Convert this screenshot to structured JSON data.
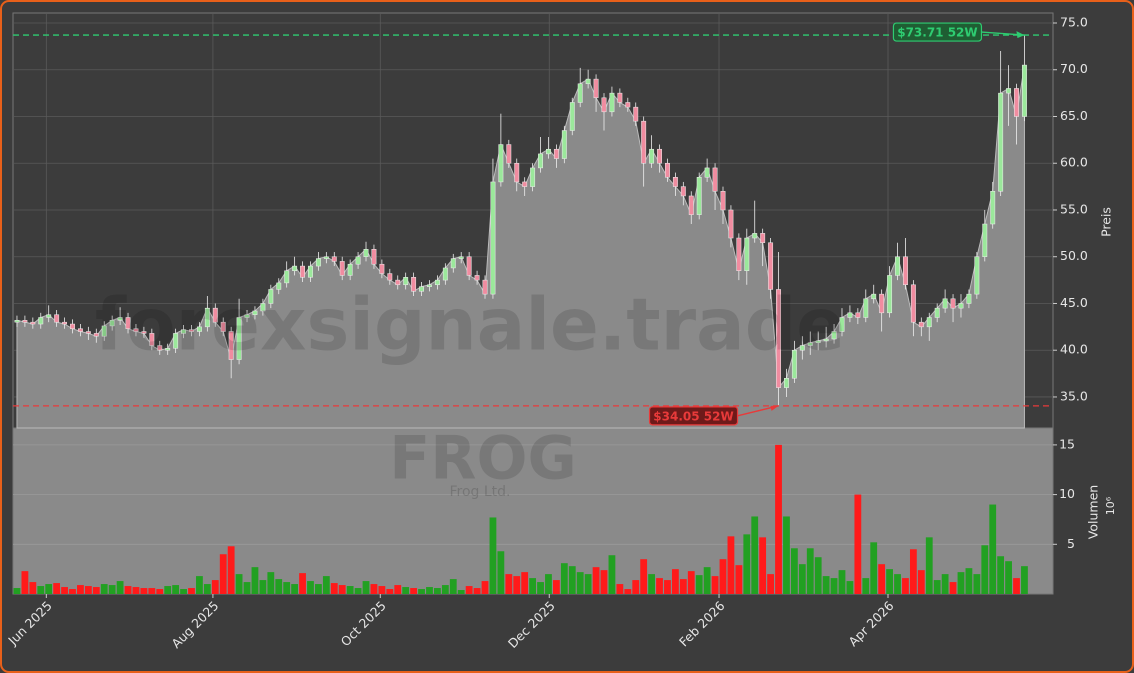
{
  "chart_data": {
    "type": "candlestick",
    "watermark": "forexsignale.trade",
    "symbol": "FROG",
    "company": "Frog Ltd.",
    "ylabel": "Preis",
    "y2label": "Volumen",
    "y2unit": "10⁶",
    "open": [
      43.0,
      43.2,
      43.0,
      42.8,
      43.5,
      43.8,
      43.0,
      42.8,
      42.3,
      42.0,
      41.8,
      41.5,
      42.6,
      43.2,
      43.5,
      42.3,
      42.0,
      41.8,
      40.5,
      40.0,
      40.2,
      41.8,
      42.2,
      42.0,
      42.5,
      44.5,
      43.0,
      42.0,
      39.0,
      43.5,
      43.8,
      44.2,
      45.0,
      46.5,
      47.2,
      48.5,
      49.0,
      47.8,
      49.0,
      49.8,
      50.0,
      49.5,
      48.0,
      49.2,
      50.0,
      50.8,
      49.2,
      48.2,
      47.5,
      47.0,
      47.8,
      46.3,
      46.8,
      47.0,
      47.5,
      48.8,
      49.8,
      50.0,
      48.0,
      47.5,
      46.0,
      58.0,
      62.0,
      60.0,
      58.0,
      57.5,
      59.5,
      61.0,
      61.5,
      60.5,
      63.5,
      66.5,
      68.5,
      69.0,
      67.0,
      65.5,
      67.5,
      66.5,
      66.0,
      64.5,
      60.0,
      61.5,
      60.0,
      58.5,
      57.5,
      56.5,
      54.5,
      58.5,
      59.5,
      57.0,
      55.0,
      52.0,
      48.5,
      52.0,
      52.5,
      51.5,
      46.5,
      36.0,
      37.0,
      40.0,
      40.5,
      40.8,
      41.0,
      41.2,
      42.0,
      43.5,
      44.0,
      43.5,
      45.5,
      46.0,
      44.0,
      48.0,
      50.0,
      47.0,
      43.0,
      42.5,
      43.5,
      44.5,
      45.5,
      44.5,
      45.0,
      46.0,
      50.0,
      53.5,
      57.0,
      67.5,
      68.0,
      65.0
    ],
    "high": [
      43.7,
      43.7,
      43.5,
      44.0,
      44.8,
      44.3,
      43.5,
      43.3,
      42.8,
      42.5,
      42.3,
      43.1,
      43.7,
      44.6,
      44.0,
      42.8,
      42.5,
      42.3,
      41.0,
      40.7,
      42.3,
      42.7,
      42.7,
      43.0,
      45.8,
      45.0,
      43.5,
      42.5,
      45.5,
      44.3,
      44.7,
      45.5,
      47.0,
      47.7,
      49.5,
      50.0,
      49.5,
      49.5,
      50.5,
      50.5,
      50.5,
      50.0,
      49.7,
      50.5,
      51.6,
      51.3,
      49.7,
      48.7,
      48.0,
      48.3,
      48.3,
      47.3,
      47.5,
      48.0,
      49.3,
      50.3,
      50.5,
      50.5,
      48.5,
      48.0,
      60.5,
      65.3,
      62.5,
      60.5,
      58.5,
      60.0,
      62.8,
      62.8,
      62.0,
      64.0,
      67.0,
      70.2,
      70.0,
      69.5,
      67.5,
      68.2,
      68.0,
      67.0,
      66.5,
      65.0,
      63.0,
      62.0,
      60.5,
      59.0,
      58.0,
      57.0,
      59.0,
      60.5,
      60.0,
      57.5,
      55.5,
      52.5,
      53.0,
      56.0,
      53.0,
      52.0,
      50.5,
      38.0,
      41.0,
      41.5,
      42.0,
      42.0,
      42.5,
      42.8,
      44.5,
      44.8,
      44.5,
      46.5,
      47.0,
      46.5,
      49.0,
      51.5,
      52.0,
      47.5,
      43.5,
      44.0,
      45.0,
      46.5,
      46.0,
      46.0,
      46.5,
      50.5,
      55.0,
      58.0,
      72.0,
      70.5,
      68.5,
      73.71
    ],
    "low": [
      42.5,
      42.5,
      42.3,
      42.3,
      43.0,
      42.5,
      42.3,
      41.8,
      41.5,
      41.1,
      40.8,
      41.0,
      42.1,
      42.7,
      41.8,
      41.5,
      41.3,
      40.0,
      39.5,
      39.5,
      39.7,
      41.3,
      41.5,
      41.5,
      42.0,
      42.5,
      41.5,
      37.0,
      38.5,
      43.0,
      43.3,
      43.7,
      44.5,
      46.0,
      46.7,
      48.0,
      47.3,
      47.3,
      48.5,
      49.3,
      49.0,
      47.5,
      47.5,
      48.7,
      49.5,
      48.7,
      47.7,
      47.0,
      46.5,
      46.5,
      45.8,
      45.8,
      46.3,
      46.5,
      47.0,
      48.3,
      49.3,
      47.5,
      47.0,
      45.5,
      45.5,
      57.5,
      59.5,
      57.0,
      56.5,
      57.0,
      59.0,
      60.5,
      59.5,
      60.0,
      63.0,
      66.0,
      68.0,
      65.5,
      63.5,
      65.0,
      66.0,
      65.5,
      64.0,
      57.5,
      59.5,
      59.0,
      58.0,
      56.5,
      55.5,
      53.5,
      54.0,
      58.0,
      55.0,
      53.5,
      51.0,
      47.5,
      47.0,
      51.5,
      49.0,
      45.5,
      34.05,
      35.0,
      36.5,
      39.0,
      39.5,
      40.0,
      40.3,
      40.7,
      41.5,
      43.0,
      42.8,
      43.0,
      45.0,
      42.0,
      43.5,
      47.5,
      46.5,
      41.5,
      41.5,
      41.0,
      43.0,
      44.0,
      43.0,
      43.5,
      44.5,
      45.5,
      49.5,
      53.0,
      56.5,
      64.0,
      62.0,
      64.5
    ],
    "close": [
      43.2,
      43.0,
      42.8,
      43.5,
      43.8,
      43.0,
      42.8,
      42.3,
      42.0,
      41.8,
      41.5,
      42.6,
      43.2,
      43.5,
      42.3,
      42.0,
      41.8,
      40.5,
      40.0,
      40.2,
      41.8,
      42.2,
      42.0,
      42.5,
      44.5,
      43.0,
      42.0,
      39.0,
      43.5,
      43.8,
      44.2,
      45.0,
      46.5,
      47.2,
      48.5,
      49.0,
      47.8,
      49.0,
      49.8,
      50.0,
      49.5,
      48.0,
      49.2,
      50.0,
      50.8,
      49.2,
      48.2,
      47.5,
      47.0,
      47.8,
      46.3,
      46.8,
      47.0,
      47.5,
      48.8,
      49.8,
      50.0,
      48.0,
      47.5,
      46.0,
      58.0,
      62.0,
      60.0,
      58.0,
      57.5,
      59.5,
      61.0,
      61.5,
      60.5,
      63.5,
      66.5,
      68.5,
      69.0,
      67.0,
      65.5,
      67.5,
      66.5,
      66.0,
      64.5,
      60.0,
      61.5,
      60.0,
      58.5,
      57.5,
      56.5,
      54.5,
      58.5,
      59.5,
      57.0,
      55.0,
      52.0,
      48.5,
      52.0,
      52.5,
      51.5,
      46.5,
      36.0,
      37.0,
      40.0,
      40.5,
      40.8,
      41.0,
      41.2,
      42.0,
      43.5,
      44.0,
      43.5,
      45.5,
      46.0,
      44.0,
      48.0,
      50.0,
      47.0,
      43.0,
      42.5,
      43.5,
      44.5,
      45.5,
      44.5,
      45.0,
      46.0,
      50.0,
      53.5,
      57.0,
      67.5,
      68.0,
      65.0,
      70.5
    ],
    "volume": [
      0.6,
      2.3,
      1.2,
      0.8,
      1.0,
      1.1,
      0.7,
      0.5,
      0.9,
      0.8,
      0.7,
      1.0,
      0.9,
      1.3,
      0.8,
      0.7,
      0.6,
      0.6,
      0.5,
      0.8,
      0.9,
      0.5,
      0.6,
      1.8,
      1.0,
      1.4,
      4.0,
      4.8,
      2.0,
      1.2,
      2.7,
      1.4,
      2.2,
      1.5,
      1.2,
      1.0,
      2.1,
      1.3,
      1.0,
      1.8,
      1.1,
      0.9,
      0.8,
      0.6,
      1.3,
      1.0,
      0.8,
      0.5,
      0.9,
      0.7,
      0.6,
      0.5,
      0.7,
      0.6,
      0.9,
      1.5,
      0.4,
      0.8,
      0.6,
      1.3,
      7.7,
      4.3,
      2.0,
      1.8,
      2.2,
      1.6,
      1.2,
      2.0,
      1.4,
      3.1,
      2.8,
      2.2,
      2.0,
      2.7,
      2.4,
      3.9,
      1.0,
      0.5,
      1.4,
      3.5,
      2.0,
      1.6,
      1.4,
      2.5,
      1.5,
      2.3,
      1.9,
      2.7,
      1.8,
      3.5,
      5.8,
      2.9,
      6.0,
      7.8,
      5.7,
      2.0,
      15.0,
      7.8,
      4.6,
      3.0,
      4.6,
      3.7,
      1.8,
      1.6,
      2.4,
      1.3,
      10.0,
      1.6,
      5.2,
      3.0,
      2.5,
      2.0,
      1.6,
      4.5,
      2.4,
      5.7,
      1.4,
      2.0,
      1.2,
      2.2,
      2.6,
      2.0,
      4.9,
      9.0,
      3.8,
      3.3,
      1.6,
      2.8
    ],
    "xlim": [
      -0.5,
      130.6
    ],
    "xticks": [
      {
        "value": 3.7,
        "label": "Jun 2025"
      },
      {
        "value": 24.7,
        "label": "Aug 2025"
      },
      {
        "value": 45.8,
        "label": "Oct 2025"
      },
      {
        "value": 67.1,
        "label": "Dec 2025"
      },
      {
        "value": 88.5,
        "label": "Feb 2026"
      },
      {
        "value": 109.8,
        "label": "Apr 2026"
      }
    ],
    "ylim": [
      31.68,
      76.07
    ],
    "yticks": [
      {
        "value": 35,
        "label": "35.0"
      },
      {
        "value": 40,
        "label": "40.0"
      },
      {
        "value": 45,
        "label": "45.0"
      },
      {
        "value": 50,
        "label": "50.0"
      },
      {
        "value": 55,
        "label": "55.0"
      },
      {
        "value": 60,
        "label": "60.0"
      },
      {
        "value": 65,
        "label": "65.0"
      },
      {
        "value": 70,
        "label": "70.0"
      },
      {
        "value": 75,
        "label": "75.0"
      }
    ],
    "y2lim": [
      0,
      16.7
    ],
    "y2ticks": [
      5,
      10,
      15
    ],
    "grid": true,
    "up_color": "#22a022",
    "down_color": "#ff1a1a",
    "area_color": "#8a8a8a",
    "annotations": [
      {
        "label": "$73.71 52W",
        "value": 73.71,
        "color": "#2ecc71"
      },
      {
        "label": "$34.05 52W",
        "value": 34.05,
        "color": "#e83a3a"
      }
    ]
  }
}
